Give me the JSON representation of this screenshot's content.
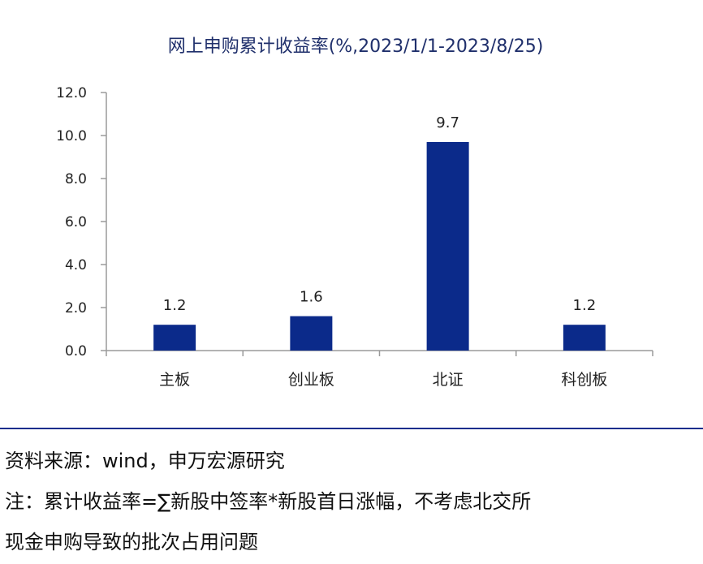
{
  "chart_data": {
    "type": "bar",
    "title": "网上申购累计收益率(%,2023/1/1-2023/8/25)",
    "categories": [
      "主板",
      "创业板",
      "北证",
      "科创板"
    ],
    "values": [
      1.2,
      1.6,
      9.7,
      1.2
    ],
    "data_labels": [
      "1.2",
      "1.6",
      "9.7",
      "1.2"
    ],
    "ylim": [
      0,
      12
    ],
    "yticks": [
      "0.0",
      "2.0",
      "4.0",
      "6.0",
      "8.0",
      "10.0",
      "12.0"
    ],
    "xlabel": "",
    "ylabel": "",
    "grid": false,
    "bar_color": "#0b2a8a"
  },
  "footer": {
    "source": "资料来源：wind，申万宏源研究",
    "note_line1": "注：累计收益率=∑新股中签率*新股首日涨幅，不考虑北交所",
    "note_line2": "现金申购导致的批次占用问题"
  }
}
